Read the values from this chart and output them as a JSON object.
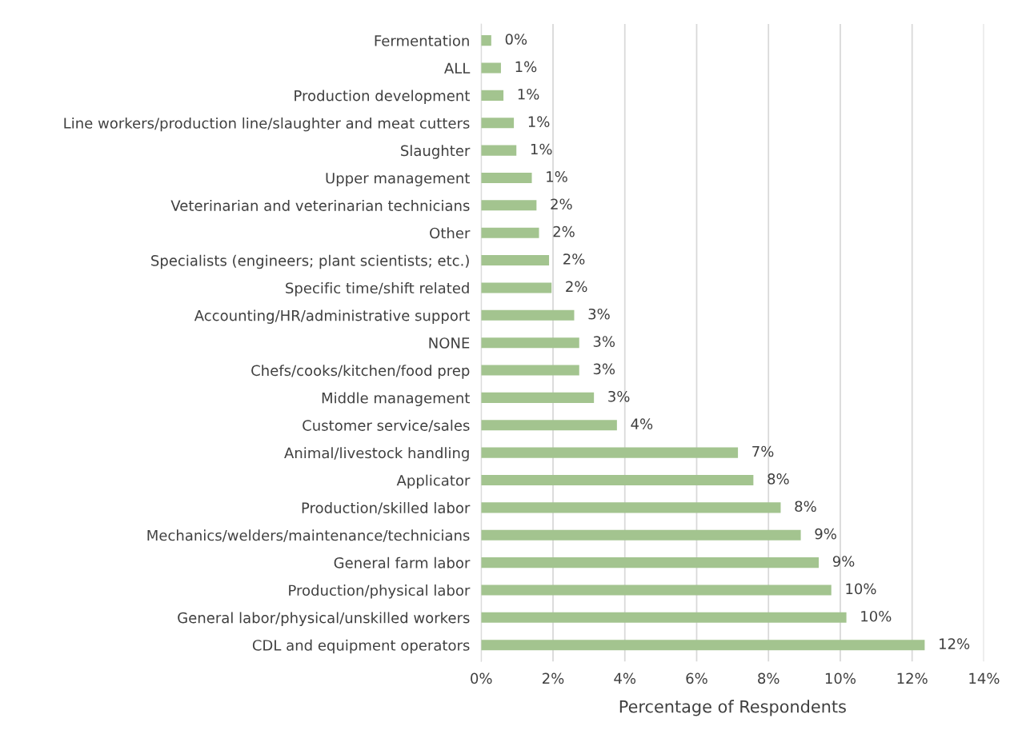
{
  "chart_data": {
    "type": "bar",
    "orientation": "horizontal",
    "xlabel": "Percentage of Respondents",
    "categories": [
      "Fermentation",
      "ALL",
      "Production development",
      "Line workers/production line/slaughter and meat cutters",
      "Slaughter",
      "Upper management",
      "Veterinarian and veterinarian technicians",
      "Other",
      "Specialists (engineers; plant scientists; etc.)",
      "Specific time/shift related",
      "Accounting/HR/administrative support",
      "NONE",
      "Chefs/cooks/kitchen/food prep",
      "Middle management",
      "Customer service/sales",
      "Animal/livestock handling",
      "Applicator",
      "Production/skilled labor",
      "Mechanics/welders/maintenance/technicians",
      "General farm labor",
      "Production/physical labor",
      "General labor/physical/unskilled workers",
      "CDL and equipment operators"
    ],
    "values": [
      0.28,
      0.55,
      0.62,
      0.91,
      0.98,
      1.41,
      1.54,
      1.61,
      1.89,
      1.96,
      2.59,
      2.73,
      2.73,
      3.14,
      3.78,
      7.15,
      7.58,
      8.34,
      8.9,
      9.4,
      9.75,
      10.17,
      12.35
    ],
    "value_labels": [
      "0%",
      "1%",
      "1%",
      "1%",
      "1%",
      "1%",
      "2%",
      "2%",
      "2%",
      "2%",
      "3%",
      "3%",
      "3%",
      "3%",
      "4%",
      "7%",
      "8%",
      "8%",
      "9%",
      "9%",
      "10%",
      "10%",
      "12%"
    ],
    "color": "#a3c48f",
    "xlim": [
      0,
      14
    ],
    "xticks": [
      {
        "value": 0,
        "label": "0%"
      },
      {
        "value": 2,
        "label": "2%"
      },
      {
        "value": 4,
        "label": "4%"
      },
      {
        "value": 6,
        "label": "6%"
      },
      {
        "value": 8,
        "label": "8%"
      },
      {
        "value": 10,
        "label": "10%"
      },
      {
        "value": 12,
        "label": "12%"
      },
      {
        "value": 14,
        "label": "14%"
      }
    ],
    "grid": "x",
    "legend": false
  }
}
